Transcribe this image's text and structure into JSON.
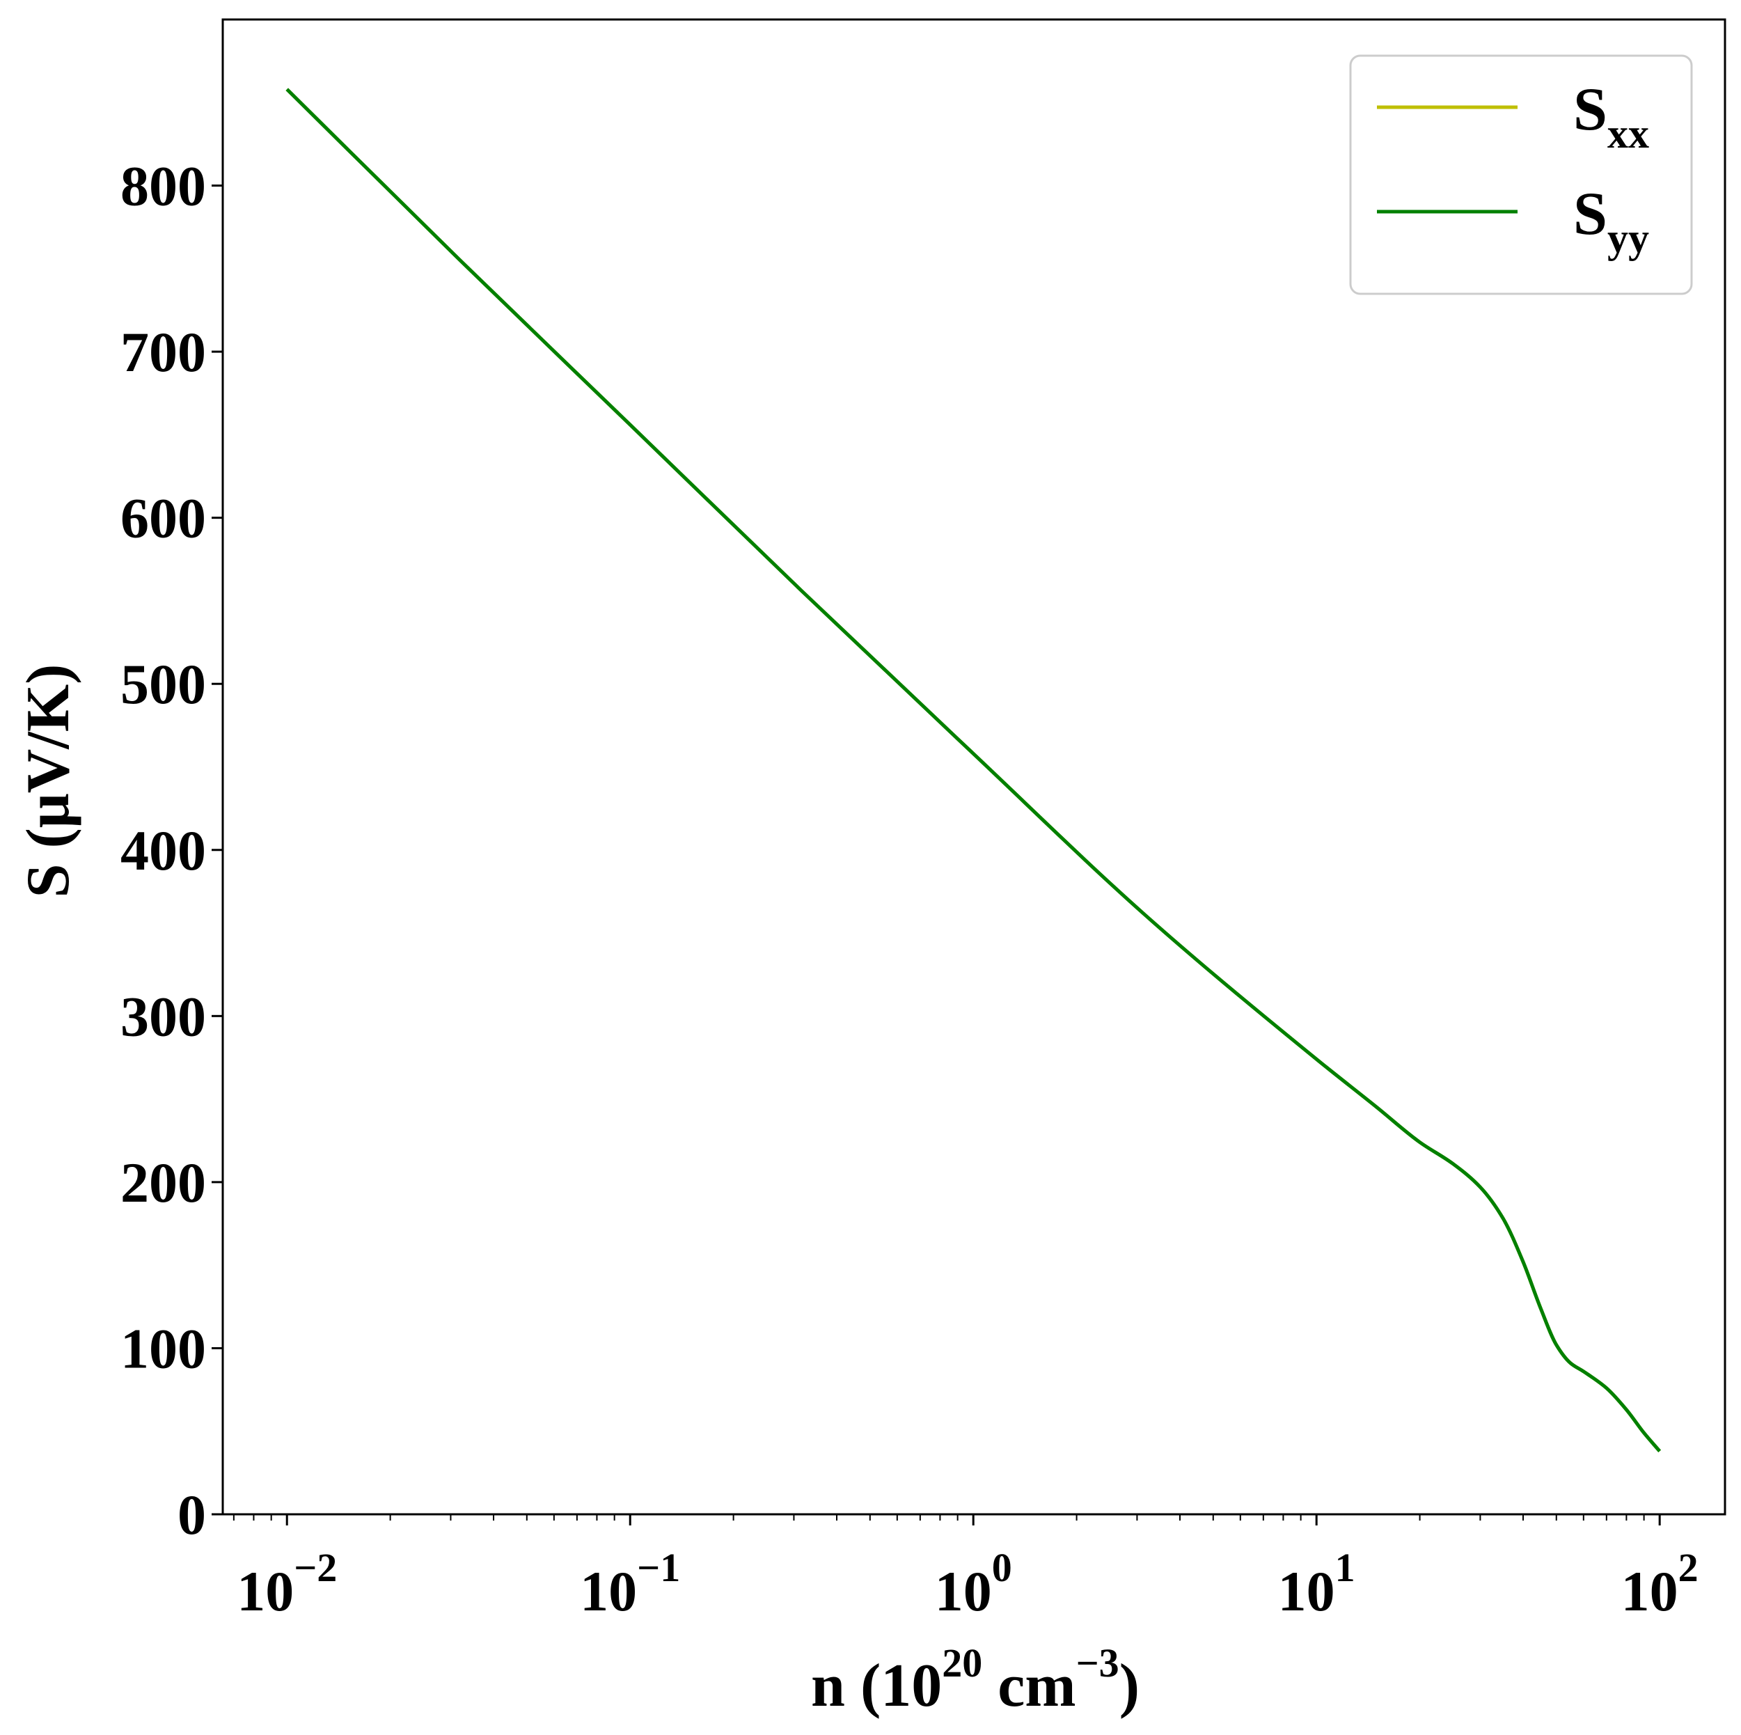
{
  "chart_data": {
    "type": "line",
    "title": "",
    "xlabel": {
      "base": "n (10",
      "exp1": "20",
      "mid": " cm",
      "exp2": "−3",
      "end": ")"
    },
    "ylabel": "S (μV/K)",
    "xscale": "log",
    "xlim": [
      0.0065,
      155
    ],
    "ylim": [
      0,
      900
    ],
    "xticks": [
      {
        "value": 0.01,
        "base": "10",
        "exp": "−2"
      },
      {
        "value": 0.1,
        "base": "10",
        "exp": "−1"
      },
      {
        "value": 1,
        "base": "10",
        "exp": "0"
      },
      {
        "value": 10,
        "base": "10",
        "exp": "1"
      },
      {
        "value": 100,
        "base": "10",
        "exp": "2"
      }
    ],
    "yticks": [
      0,
      100,
      200,
      300,
      400,
      500,
      600,
      700,
      800
    ],
    "grid": false,
    "legend": {
      "position": "top-right",
      "entries": [
        {
          "base": "S",
          "sub": "xx",
          "color": "#bfbf00"
        },
        {
          "base": "S",
          "sub": "yy",
          "color": "#008000"
        }
      ]
    },
    "series": [
      {
        "name": "Sxx",
        "color": "#bfbf00",
        "x": [
          0.01,
          0.0316,
          0.1,
          0.316,
          1,
          3.16,
          10,
          15,
          20,
          25,
          30,
          35,
          40,
          45,
          50,
          55,
          60,
          70,
          80,
          90,
          100
        ],
        "y": [
          858,
          756,
          656,
          556,
          458,
          361,
          274,
          245,
          224,
          211,
          197,
          178,
          152,
          124,
          102,
          91,
          86,
          76,
          63,
          49,
          38
        ]
      },
      {
        "name": "Syy",
        "color": "#008000",
        "x": [
          0.01,
          0.0316,
          0.1,
          0.316,
          1,
          3.16,
          10,
          15,
          20,
          25,
          30,
          35,
          40,
          45,
          50,
          55,
          60,
          70,
          80,
          90,
          100
        ],
        "y": [
          858,
          756,
          656,
          556,
          458,
          361,
          274,
          245,
          224,
          211,
          197,
          178,
          152,
          124,
          102,
          91,
          86,
          76,
          63,
          49,
          38
        ]
      }
    ]
  }
}
